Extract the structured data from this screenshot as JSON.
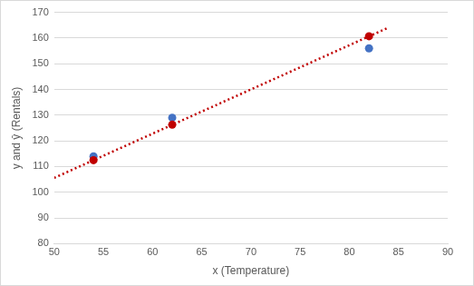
{
  "chart_data": {
    "type": "scatter",
    "x_label": "x (Temperature)",
    "y_label": "y and ŷ (Rentals)",
    "xlim": [
      50,
      90
    ],
    "xticks": [
      50,
      55,
      60,
      65,
      70,
      75,
      80,
      85,
      90
    ],
    "ylim": [
      80,
      170
    ],
    "yticks": [
      80,
      90,
      100,
      110,
      120,
      130,
      140,
      150,
      160,
      170
    ],
    "grid": "y",
    "series": [
      {
        "type": "line",
        "color": "#c00000",
        "line_style": "dotted",
        "marker": "none",
        "x": [
          50,
          84
        ],
        "values": [
          105.6,
          164.1
        ]
      },
      {
        "type": "scatter",
        "color": "#4472c4",
        "marker": "circle",
        "x": [
          54,
          62,
          82
        ],
        "values": [
          114,
          129,
          156
        ]
      },
      {
        "type": "scatter",
        "color": "#c00000",
        "marker": "circle",
        "x": [
          54,
          62,
          82
        ],
        "values": [
          112.5,
          126.3,
          160.7
        ]
      }
    ]
  }
}
